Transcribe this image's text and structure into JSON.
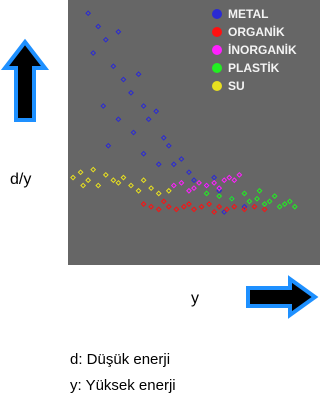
{
  "chart_data": {
    "type": "scatter",
    "x_label": "y",
    "y_label": "d/y",
    "annotations": [
      "d: Düşük enerji",
      "y: Yüksek enerji"
    ],
    "xlim": [
      0,
      100
    ],
    "ylim": [
      0,
      100
    ],
    "legend": "top-right",
    "series": [
      {
        "name": "METAL",
        "color": "#2a2ad4",
        "x": [
          8,
          12,
          10,
          15,
          18,
          20,
          22,
          25,
          14,
          28,
          30,
          32,
          26,
          35,
          38,
          30,
          40,
          42,
          45,
          48,
          36,
          50,
          55,
          60,
          65,
          58,
          70,
          62,
          20,
          16
        ],
        "values": [
          95,
          90,
          80,
          85,
          75,
          88,
          70,
          65,
          60,
          72,
          60,
          55,
          50,
          58,
          48,
          42,
          45,
          38,
          40,
          35,
          38,
          32,
          30,
          28,
          25,
          33,
          22,
          20,
          55,
          45
        ]
      },
      {
        "name": "ORGANİK",
        "color": "#ff1010",
        "x": [
          30,
          33,
          36,
          40,
          43,
          46,
          50,
          53,
          56,
          60,
          63,
          66,
          70,
          74,
          78,
          38,
          48,
          58
        ],
        "values": [
          23,
          22,
          21,
          22,
          21,
          22,
          21,
          22,
          23,
          22,
          21,
          22,
          21,
          22,
          21,
          24,
          23,
          20
        ]
      },
      {
        "name": "İNORGANİK",
        "color": "#ff20ff",
        "x": [
          42,
          45,
          50,
          55,
          58,
          62,
          64,
          66,
          68,
          60,
          52,
          48
        ],
        "values": [
          30,
          31,
          29,
          30,
          31,
          32,
          33,
          32,
          34,
          29,
          31,
          28
        ]
      },
      {
        "name": "PLASTİK",
        "color": "#22ee22",
        "x": [
          55,
          60,
          65,
          70,
          72,
          75,
          78,
          80,
          84,
          86,
          88,
          90,
          82,
          76
        ],
        "values": [
          27,
          26,
          25,
          27,
          24,
          25,
          23,
          24,
          22,
          23,
          24,
          22,
          26,
          28
        ]
      },
      {
        "name": "SU",
        "color": "#e8e020",
        "x": [
          2,
          5,
          8,
          10,
          12,
          15,
          18,
          20,
          22,
          25,
          28,
          30,
          33,
          36,
          40,
          6
        ],
        "values": [
          33,
          35,
          32,
          36,
          30,
          34,
          32,
          31,
          33,
          30,
          28,
          32,
          29,
          27,
          28,
          30
        ]
      }
    ]
  }
}
